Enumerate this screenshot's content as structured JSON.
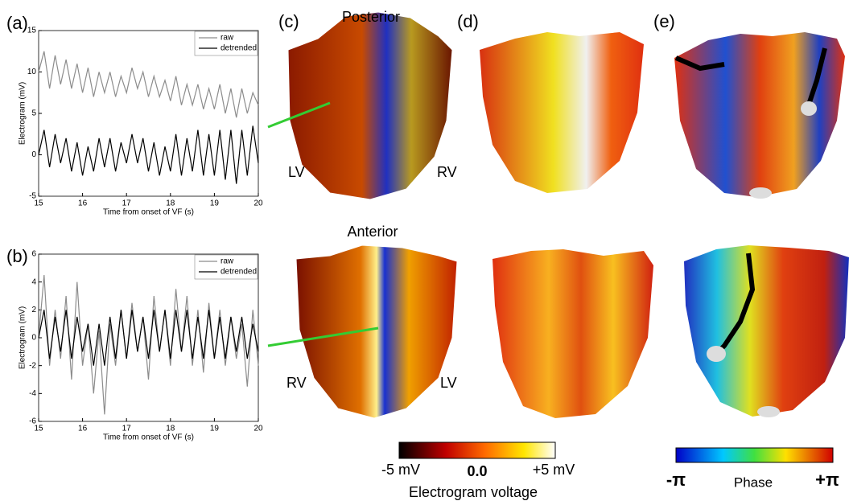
{
  "chart_data": [
    {
      "type": "line",
      "panel": "(a)",
      "xlabel": "Time from onset of VF (s)",
      "ylabel": "Electrogram (mV)",
      "x": [
        15,
        15.125,
        15.25,
        15.375,
        15.5,
        15.625,
        15.75,
        15.875,
        16,
        16.125,
        16.25,
        16.375,
        16.5,
        16.625,
        16.75,
        16.875,
        17,
        17.125,
        17.25,
        17.375,
        17.5,
        17.625,
        17.75,
        17.875,
        18,
        18.125,
        18.25,
        18.375,
        18.5,
        18.625,
        18.75,
        18.875,
        19,
        19.125,
        19.25,
        19.375,
        19.5,
        19.625,
        19.75,
        19.875,
        20
      ],
      "series": [
        {
          "name": "raw",
          "color": "#8c8c8c",
          "values": [
            10,
            12.5,
            8,
            12,
            8.5,
            11.5,
            8,
            11,
            7.5,
            10.5,
            7,
            10,
            7.5,
            10,
            7,
            9.5,
            7.5,
            10.5,
            8,
            10,
            7,
            9.5,
            7,
            9,
            6.5,
            9.5,
            6,
            8.5,
            6,
            8.5,
            5.5,
            8,
            5.5,
            8.5,
            5,
            8,
            4.5,
            8,
            5,
            7.5,
            6
          ]
        },
        {
          "name": "detrended",
          "color": "#000000",
          "values": [
            0,
            3,
            -1.5,
            2.5,
            -1,
            2,
            -2,
            1.5,
            -2.5,
            1,
            -2,
            2,
            -1.5,
            2,
            -2,
            1.5,
            -1,
            2.5,
            -1,
            2,
            -2,
            1.5,
            -2.5,
            1,
            -2,
            2.5,
            -2.5,
            2,
            -2,
            3,
            -2.5,
            2.5,
            -2.5,
            3,
            -3,
            3,
            -3.5,
            3,
            -2.5,
            3.5,
            -1
          ]
        }
      ],
      "xlim": [
        15,
        20
      ],
      "xticks": [
        15,
        16,
        17,
        18,
        19,
        20
      ],
      "ylim": [
        -5,
        15
      ],
      "yticks": [
        -5,
        0,
        5,
        10,
        15
      ],
      "legend": "upper right"
    },
    {
      "type": "line",
      "panel": "(b)",
      "xlabel": "Time from onset of VF (s)",
      "ylabel": "Electrogram (mV)",
      "x": [
        15,
        15.125,
        15.25,
        15.375,
        15.5,
        15.625,
        15.75,
        15.875,
        16,
        16.125,
        16.25,
        16.375,
        16.5,
        16.625,
        16.75,
        16.875,
        17,
        17.125,
        17.25,
        17.375,
        17.5,
        17.625,
        17.75,
        17.875,
        18,
        18.125,
        18.25,
        18.375,
        18.5,
        18.625,
        18.75,
        18.875,
        19,
        19.125,
        19.25,
        19.375,
        19.5,
        19.625,
        19.75,
        19.875,
        20
      ],
      "series": [
        {
          "name": "raw",
          "color": "#8c8c8c",
          "values": [
            0,
            4.5,
            -2,
            2,
            -1.5,
            3,
            -3,
            4,
            -2,
            1,
            -4,
            0.5,
            -5.5,
            1,
            -2,
            2,
            -1.5,
            2.5,
            -1,
            1.5,
            -3,
            3,
            -1,
            2,
            -2,
            3.5,
            -1,
            3,
            -2,
            2,
            -2.5,
            2.5,
            -1.5,
            2,
            -2,
            1.5,
            -1.5,
            1,
            -3.5,
            2,
            -2
          ]
        },
        {
          "name": "detrended",
          "color": "#000000",
          "values": [
            0,
            2,
            -1.5,
            1.5,
            -1,
            2,
            -1.5,
            1.5,
            -1,
            1,
            -2,
            1,
            -2,
            1.5,
            -1.5,
            2,
            -1.5,
            2,
            -1,
            1.5,
            -1.5,
            2,
            -1,
            2,
            -1.5,
            2,
            -1,
            2,
            -1.5,
            1.5,
            -1.5,
            2,
            -1.5,
            1.5,
            -1.5,
            1.5,
            -1,
            1.5,
            -1.5,
            1,
            -1
          ]
        }
      ],
      "xlim": [
        15,
        20
      ],
      "xticks": [
        15,
        16,
        17,
        18,
        19,
        20
      ],
      "ylim": [
        -6,
        6
      ],
      "yticks": [
        -6,
        -4,
        -2,
        0,
        2,
        4,
        6
      ],
      "legend": "upper right"
    }
  ],
  "figure": {
    "panel_c": "(c)",
    "panel_d": "(d)",
    "panel_e": "(e)",
    "posterior": "Posterior",
    "anterior": "Anterior",
    "posterior_left": "LV",
    "posterior_right": "RV",
    "anterior_left": "RV",
    "anterior_right": "LV",
    "voltage_bar": {
      "min_label": "-5 mV",
      "mid_label": "0.0",
      "max_label": "+5 mV",
      "title": "Electrogram voltage"
    },
    "phase_bar": {
      "min_label": "-π",
      "title": "Phase",
      "max_label": "+π"
    }
  }
}
